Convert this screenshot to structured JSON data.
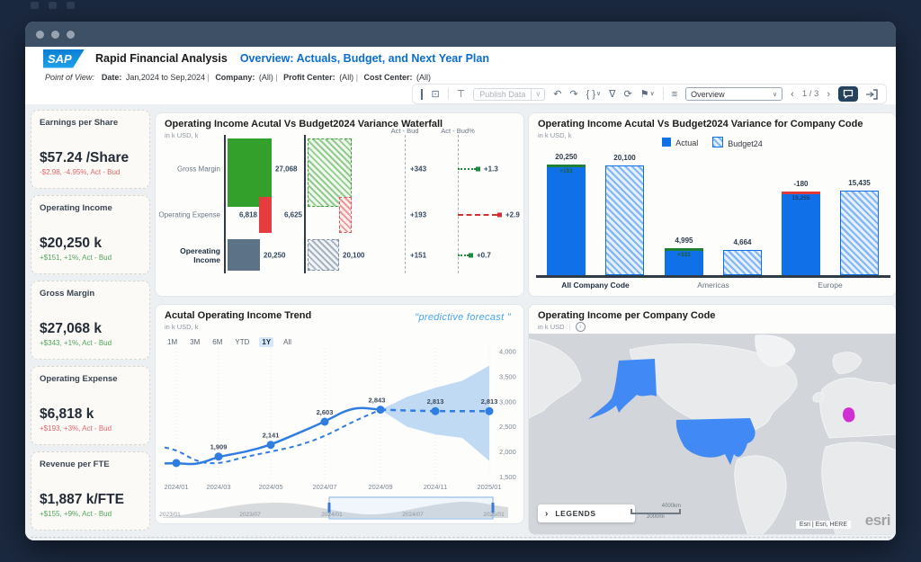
{
  "header": {
    "logo": "SAP",
    "app_title": "Rapid Financial Analysis",
    "page_title": "Overview: Actuals, Budget, and Next Year Plan"
  },
  "pov": {
    "label": "Point of View:",
    "items": [
      {
        "label": "Date:",
        "value": "Jan,2024 to Sep,2024"
      },
      {
        "label": "Company:",
        "value": "(All)"
      },
      {
        "label": "Profit Center:",
        "value": "(All)"
      },
      {
        "label": "Cost Center:",
        "value": "(All)"
      }
    ]
  },
  "toolbar": {
    "publish_label": "Publish Data",
    "view_value": "Overview",
    "page_indicator": "1 / 3"
  },
  "kpis": [
    {
      "title": "Earnings per Share",
      "value": "$57.24 /Share",
      "delta": "-$2.98, -4.95%, Act - Bud",
      "tone": "neg"
    },
    {
      "title": "Operating Income",
      "value": "$20,250 k",
      "delta": "+$151, +1%, Act - Bud",
      "tone": "pos"
    },
    {
      "title": "Gross Margin",
      "value": "$27,068 k",
      "delta": "+$343, +1%, Act - Bud",
      "tone": "pos"
    },
    {
      "title": "Operating Expense",
      "value": "$6,818 k",
      "delta": "+$193, +3%, Act - Bud",
      "tone": "neg"
    },
    {
      "title": "Revenue per FTE",
      "value": "$1,887 k/FTE",
      "delta": "+$155, +9%, Act - Bud",
      "tone": "pos"
    }
  ],
  "waterfall": {
    "title": "Operating Income Acutal Vs Budget2024 Variance Waterfall",
    "unit": "in k USD, k",
    "col_headers": [
      "Act - Bud",
      "Act - Bud%"
    ],
    "chart_data": {
      "type": "bar",
      "rows": [
        {
          "label": "Gross Margin",
          "actual": 27068,
          "actual_label": "27,068",
          "budget_label": "",
          "variance_label": "+343",
          "variance_pct_label": "+1.3",
          "tone": "green"
        },
        {
          "label": "Operating Expense",
          "actual": 6818,
          "actual_label": "6,818",
          "budget_label": "6,625",
          "variance_label": "+193",
          "variance_pct_label": "+2.9",
          "tone": "red"
        },
        {
          "label": "Opereating Income",
          "actual": 20250,
          "actual_label": "20,250",
          "budget_label": "20,100",
          "variance_label": "+151",
          "variance_pct_label": "+0.7",
          "tone": "slate"
        }
      ]
    }
  },
  "company_bars": {
    "title": "Operating Income Acutal Vs Budget2024 Variance for Company Code",
    "unit": "in k USD, k",
    "legend": [
      "Actual",
      "Budget24"
    ],
    "chart_data": {
      "type": "bar",
      "groups": [
        {
          "label": "All Company Code",
          "actual": 20250,
          "budget": 20100,
          "actual_top_label": "20,250",
          "budget_top_label": "20,100",
          "inner_label": "+151",
          "cap": "green",
          "bold": true
        },
        {
          "label": "Americas",
          "actual": 4995,
          "budget": 4664,
          "actual_top_label": "4,995",
          "budget_top_label": "4,664",
          "inner_label": "+331",
          "cap": "green",
          "bold": false
        },
        {
          "label": "Europe",
          "actual": 15255,
          "budget": 15435,
          "actual_top_label": "-180",
          "budget_top_label": "15,435",
          "inner_label": "15,255",
          "cap": "red",
          "bold": false
        }
      ]
    }
  },
  "trend": {
    "title": "Acutal Operating Income Trend",
    "unit": "in k USD, k",
    "note": "\"predictive forecast \"",
    "ranges": [
      "1M",
      "3M",
      "6M",
      "YTD",
      "1Y",
      "All"
    ],
    "selected_range": "1Y",
    "chart_data": {
      "type": "line",
      "x_months": [
        "2024/01",
        "2024/02",
        "2024/03",
        "2024/04",
        "2024/05",
        "2024/06",
        "2024/07",
        "2024/08",
        "2024/09",
        "2024/10",
        "2024/11",
        "2024/12",
        "2025/01"
      ],
      "series": [
        {
          "name": "Actual",
          "values": [
            1780,
            1745,
            1909,
            1995,
            2141,
            2370,
            2603,
            2900,
            2843
          ]
        },
        {
          "name": "Budget",
          "values": [
            2050,
            1800,
            1760,
            1900,
            2005,
            2120,
            2310,
            2600,
            2843
          ]
        },
        {
          "name": "Forecast",
          "start_index": 8,
          "values": [
            2843,
            2825,
            2813,
            2813,
            2813
          ]
        }
      ],
      "band": {
        "start_index": 8,
        "upper": [
          2843,
          3100,
          3280,
          3420,
          3720
        ],
        "lower": [
          2843,
          2500,
          2350,
          2280,
          1820
        ]
      },
      "point_labels": {
        "actual": [
          [
            2,
            "1,909"
          ],
          [
            4,
            "2,141"
          ],
          [
            6,
            "2,603"
          ],
          [
            8,
            "2,843"
          ]
        ],
        "forecast": [
          [
            10,
            "2,813"
          ],
          [
            12,
            "2,813"
          ]
        ]
      },
      "y_ticks": [
        [
          4000,
          "4,000"
        ],
        [
          3500,
          "3,500"
        ],
        [
          3000,
          "3,000"
        ],
        [
          2500,
          "2,500"
        ],
        [
          2000,
          "2,000"
        ],
        [
          1500,
          "1,500"
        ]
      ],
      "x_ticks": [
        [
          0,
          "2024/01"
        ],
        [
          2,
          "2024/03"
        ],
        [
          4,
          "2024/05"
        ],
        [
          6,
          "2024/07"
        ],
        [
          8,
          "2024/09"
        ],
        [
          10,
          "2024/11"
        ],
        [
          12,
          "2025/01"
        ]
      ],
      "slider_ticks": [
        "2023/01",
        "2023/07",
        "2024/01",
        "2024/07",
        "2025/01"
      ]
    }
  },
  "map": {
    "title": "Operating Income per Company Code",
    "unit": "in k USD",
    "info_icon": "i",
    "legends_label": "LEGENDS",
    "legends_chevron": "›",
    "scale_top": "4000km",
    "scale_bottom": "2000mi",
    "attribution": "Esri | Esri, HERE",
    "brand": "esri",
    "highlight_blue": "#4189f5",
    "highlight_magenta": "#cf2fd3",
    "highlighted_regions": [
      "United States",
      "Alaska",
      "Germany"
    ]
  },
  "colors": {
    "sap_blue": "#0a6ed1",
    "actual_blue": "#1070e8",
    "green": "#33a02c",
    "red": "#e53c3f",
    "slate": "#5b7287",
    "band_blue": "#b9d6f2"
  }
}
